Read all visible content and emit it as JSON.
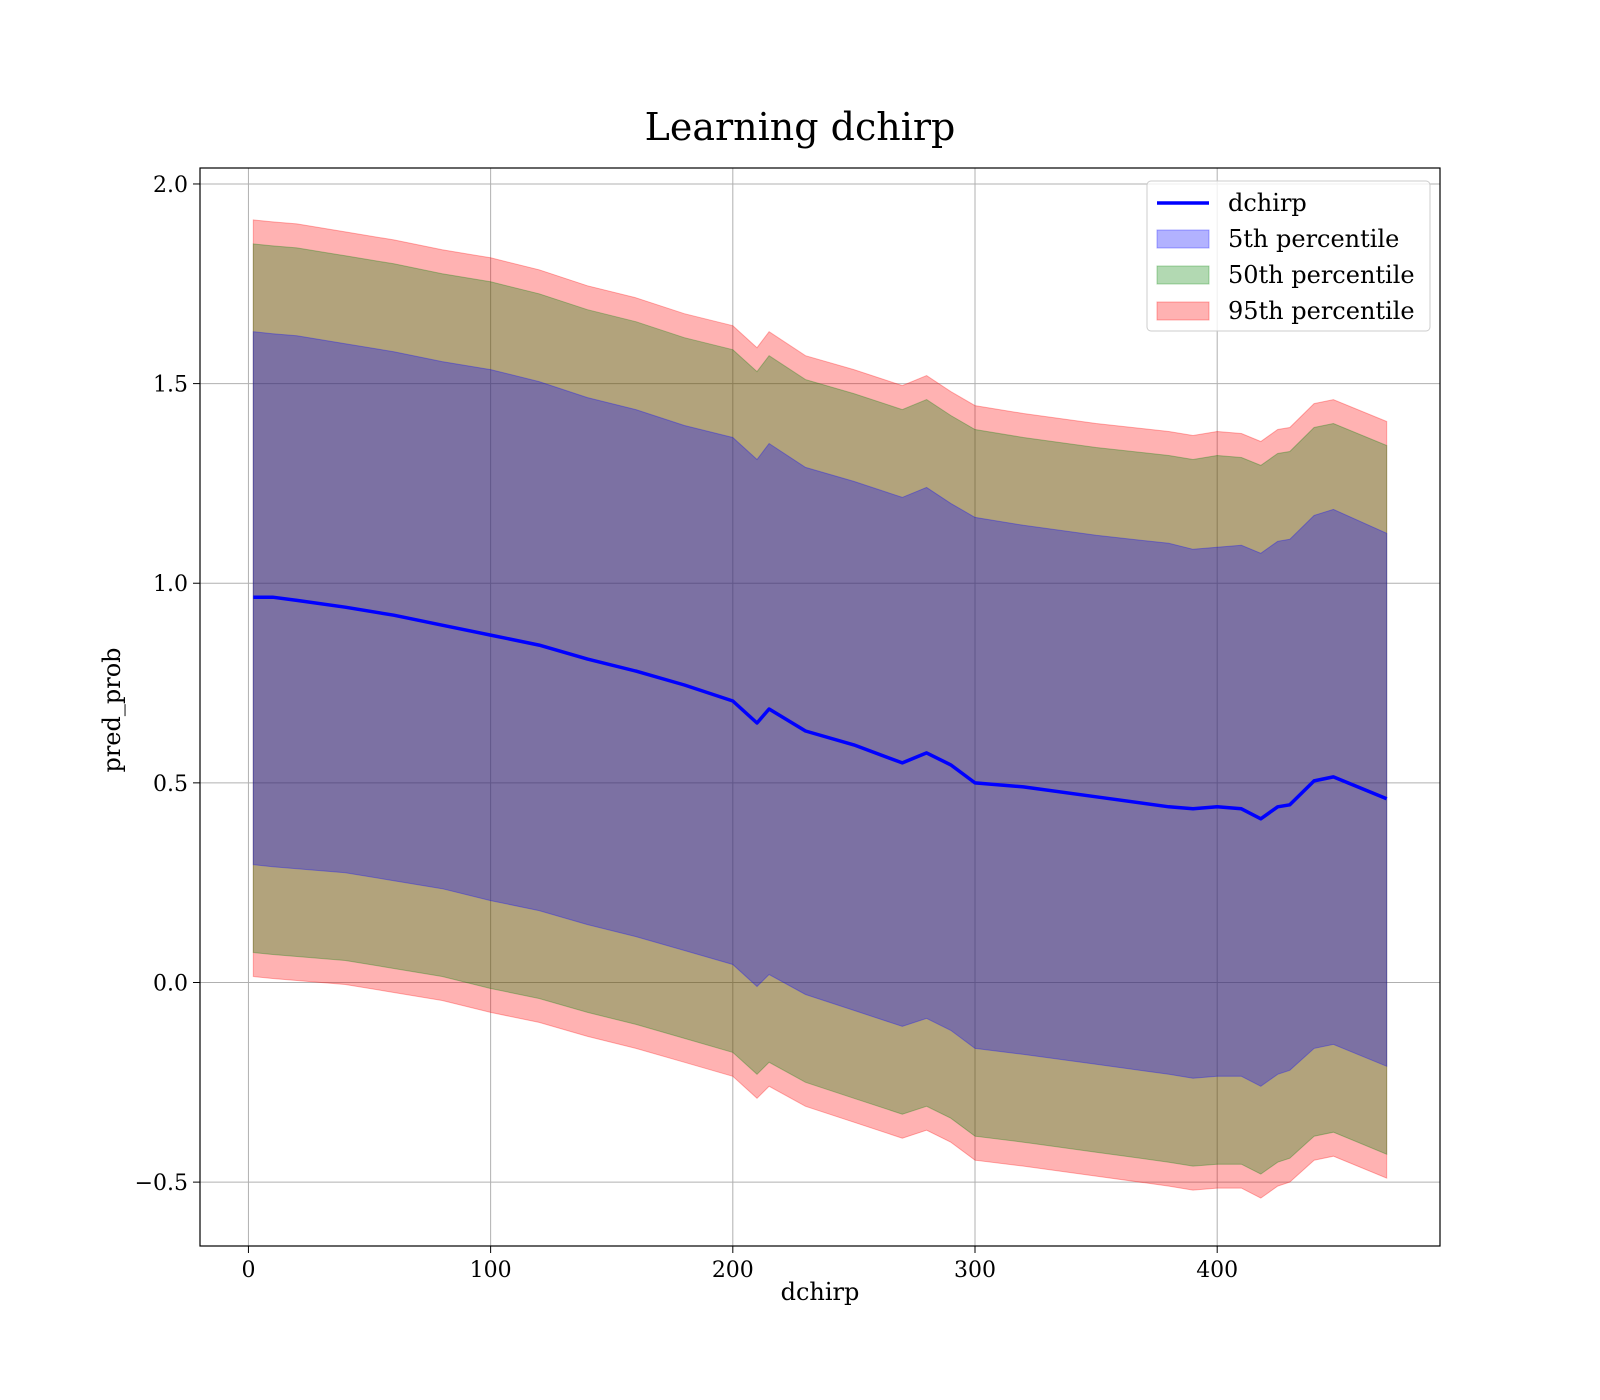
{
  "chart_data": {
    "type": "area",
    "title": "Learning dchirp",
    "xlabel": "dchirp",
    "ylabel": "pred_prob",
    "xlim": [
      -20,
      492
    ],
    "ylim": [
      -0.66,
      2.04
    ],
    "xticks": [
      0,
      100,
      200,
      300,
      400
    ],
    "xtick_labels": [
      "0",
      "100",
      "200",
      "300",
      "400"
    ],
    "yticks": [
      -0.5,
      0.0,
      0.5,
      1.0,
      1.5,
      2.0
    ],
    "ytick_labels": [
      "−0.5",
      "0.0",
      "0.5",
      "1.0",
      "1.5",
      "2.0"
    ],
    "grid": true,
    "legend_position": "top-right",
    "x": [
      2,
      10,
      20,
      40,
      60,
      80,
      100,
      120,
      140,
      160,
      180,
      200,
      210,
      215,
      230,
      250,
      270,
      280,
      290,
      300,
      320,
      350,
      380,
      390,
      400,
      410,
      418,
      425,
      430,
      440,
      448,
      470
    ],
    "series": [
      {
        "name": "dchirp",
        "kind": "line",
        "color": "#0000ff",
        "values": [
          0.965,
          0.965,
          0.957,
          0.94,
          0.92,
          0.895,
          0.87,
          0.845,
          0.81,
          0.78,
          0.745,
          0.705,
          0.65,
          0.685,
          0.63,
          0.595,
          0.55,
          0.575,
          0.545,
          0.5,
          0.49,
          0.465,
          0.44,
          0.435,
          0.44,
          0.435,
          0.41,
          0.44,
          0.445,
          0.505,
          0.515,
          0.46
        ]
      },
      {
        "name": "5th percentile",
        "kind": "band",
        "color": "#0000ff",
        "upper": [
          1.63,
          1.625,
          1.62,
          1.6,
          1.58,
          1.555,
          1.535,
          1.505,
          1.465,
          1.435,
          1.395,
          1.365,
          1.31,
          1.35,
          1.29,
          1.255,
          1.215,
          1.24,
          1.2,
          1.165,
          1.145,
          1.12,
          1.1,
          1.085,
          1.09,
          1.095,
          1.075,
          1.105,
          1.11,
          1.17,
          1.185,
          1.125
        ],
        "lower": [
          0.295,
          0.29,
          0.285,
          0.275,
          0.255,
          0.235,
          0.205,
          0.18,
          0.145,
          0.115,
          0.08,
          0.045,
          -0.01,
          0.02,
          -0.03,
          -0.07,
          -0.11,
          -0.09,
          -0.12,
          -0.165,
          -0.18,
          -0.205,
          -0.23,
          -0.24,
          -0.235,
          -0.235,
          -0.26,
          -0.23,
          -0.22,
          -0.165,
          -0.155,
          -0.21
        ]
      },
      {
        "name": "50th percentile",
        "kind": "band",
        "color": "#008000",
        "upper": [
          1.85,
          1.845,
          1.84,
          1.82,
          1.8,
          1.775,
          1.755,
          1.725,
          1.685,
          1.655,
          1.615,
          1.585,
          1.53,
          1.57,
          1.51,
          1.475,
          1.435,
          1.46,
          1.42,
          1.385,
          1.365,
          1.34,
          1.32,
          1.31,
          1.32,
          1.315,
          1.295,
          1.325,
          1.33,
          1.39,
          1.4,
          1.345
        ],
        "lower": [
          0.075,
          0.07,
          0.065,
          0.055,
          0.035,
          0.015,
          -0.015,
          -0.04,
          -0.075,
          -0.105,
          -0.14,
          -0.175,
          -0.23,
          -0.2,
          -0.25,
          -0.29,
          -0.33,
          -0.31,
          -0.34,
          -0.385,
          -0.4,
          -0.425,
          -0.45,
          -0.46,
          -0.455,
          -0.455,
          -0.48,
          -0.45,
          -0.44,
          -0.385,
          -0.375,
          -0.43
        ]
      },
      {
        "name": "95th percentile",
        "kind": "band",
        "color": "#ff0000",
        "upper": [
          1.91,
          1.905,
          1.9,
          1.88,
          1.86,
          1.835,
          1.815,
          1.785,
          1.745,
          1.715,
          1.675,
          1.645,
          1.59,
          1.63,
          1.57,
          1.535,
          1.495,
          1.52,
          1.48,
          1.445,
          1.425,
          1.4,
          1.38,
          1.37,
          1.38,
          1.375,
          1.355,
          1.385,
          1.39,
          1.45,
          1.46,
          1.405
        ],
        "lower": [
          0.015,
          0.01,
          0.005,
          -0.005,
          -0.025,
          -0.045,
          -0.075,
          -0.1,
          -0.135,
          -0.165,
          -0.2,
          -0.235,
          -0.29,
          -0.26,
          -0.31,
          -0.35,
          -0.39,
          -0.37,
          -0.4,
          -0.445,
          -0.46,
          -0.485,
          -0.51,
          -0.52,
          -0.515,
          -0.515,
          -0.54,
          -0.51,
          -0.5,
          -0.445,
          -0.435,
          -0.49
        ]
      }
    ]
  },
  "legend": {
    "items": [
      {
        "label": "dchirp",
        "kind": "line",
        "color": "#0000ff"
      },
      {
        "label": "5th percentile",
        "kind": "patch",
        "color": "#0000ff"
      },
      {
        "label": "50th percentile",
        "kind": "patch",
        "color": "#008000"
      },
      {
        "label": "95th percentile",
        "kind": "patch",
        "color": "#ff0000"
      }
    ]
  },
  "colors": {
    "grid": "#b0b0b0",
    "axes": "#000000",
    "legend_border": "#cccccc"
  }
}
